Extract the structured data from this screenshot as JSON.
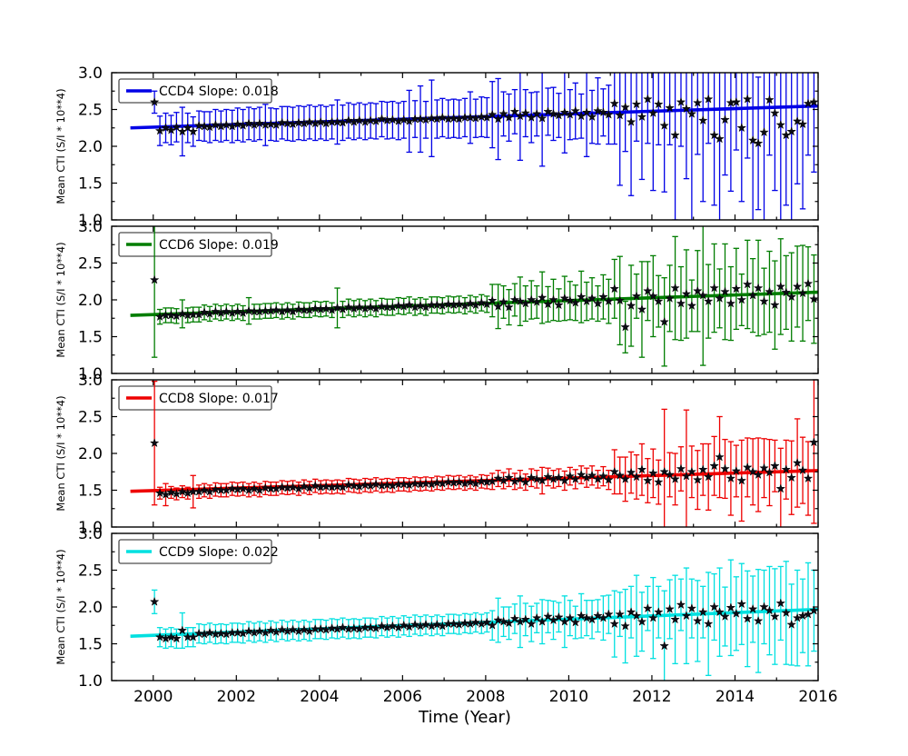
{
  "figure": {
    "background": "#ffffff"
  },
  "chart_data": {
    "type": "scatter",
    "title": "",
    "xlabel": "Time (Year)",
    "ylabel": "Mean CTI (S/I * 10**4)",
    "xlim": [
      1999,
      2016
    ],
    "ylim": [
      1.0,
      3.0
    ],
    "xticks": [
      2000,
      2002,
      2004,
      2006,
      2008,
      2010,
      2012,
      2014,
      2016
    ],
    "xticks_minor": [
      2001,
      2003,
      2005,
      2007,
      2009,
      2011,
      2013,
      2015
    ],
    "yticks": [
      1.0,
      1.5,
      2.0,
      2.5,
      3.0
    ],
    "yticks_minor": [
      1.25,
      1.75,
      2.25,
      2.75
    ],
    "grid": false,
    "legend_position": "upper left",
    "marker": "star",
    "marker_color": "#0b0b14",
    "fit_x_range": [
      1999.45,
      2016
    ],
    "x": [
      2000.03,
      2000.16,
      2000.3,
      2000.43,
      2000.56,
      2000.7,
      2000.83,
      2000.96,
      2001.1,
      2001.23,
      2001.36,
      2001.5,
      2001.63,
      2001.76,
      2001.9,
      2002.03,
      2002.16,
      2002.3,
      2002.43,
      2002.56,
      2002.7,
      2002.83,
      2002.96,
      2003.1,
      2003.23,
      2003.36,
      2003.5,
      2003.63,
      2003.76,
      2003.9,
      2004.03,
      2004.16,
      2004.3,
      2004.43,
      2004.56,
      2004.7,
      2004.83,
      2004.96,
      2005.1,
      2005.23,
      2005.36,
      2005.5,
      2005.63,
      2005.76,
      2005.9,
      2006.03,
      2006.16,
      2006.3,
      2006.43,
      2006.56,
      2006.7,
      2006.83,
      2006.96,
      2007.1,
      2007.23,
      2007.36,
      2007.5,
      2007.63,
      2007.76,
      2007.9,
      2008.03,
      2008.16,
      2008.3,
      2008.43,
      2008.56,
      2008.7,
      2008.83,
      2008.96,
      2009.1,
      2009.23,
      2009.36,
      2009.5,
      2009.63,
      2009.76,
      2009.9,
      2010.03,
      2010.16,
      2010.3,
      2010.43,
      2010.56,
      2010.7,
      2010.83,
      2010.96,
      2011.1,
      2011.23,
      2011.36,
      2011.5,
      2011.63,
      2011.76,
      2011.9,
      2012.03,
      2012.16,
      2012.3,
      2012.43,
      2012.56,
      2012.7,
      2012.83,
      2012.96,
      2013.1,
      2013.23,
      2013.36,
      2013.5,
      2013.63,
      2013.76,
      2013.9,
      2014.03,
      2014.16,
      2014.3,
      2014.43,
      2014.56,
      2014.7,
      2014.83,
      2014.96,
      2015.1,
      2015.23,
      2015.36,
      2015.5,
      2015.63,
      2015.76,
      2015.9
    ],
    "panels": [
      {
        "name": "CCD4",
        "legend_label": "CCD4 Slope: 0.018",
        "color": "#0000e6",
        "slope": 0.018,
        "intercept_2000": 2.26,
        "y": [
          2.6,
          2.21,
          2.25,
          2.22,
          2.26,
          2.2,
          2.25,
          2.2,
          2.28,
          2.27,
          2.26,
          2.29,
          2.27,
          2.29,
          2.27,
          2.3,
          2.28,
          2.31,
          2.29,
          2.31,
          2.29,
          2.3,
          2.29,
          2.32,
          2.31,
          2.3,
          2.32,
          2.31,
          2.33,
          2.31,
          2.33,
          2.31,
          2.33,
          2.33,
          2.32,
          2.35,
          2.33,
          2.35,
          2.33,
          2.35,
          2.34,
          2.37,
          2.35,
          2.36,
          2.34,
          2.36,
          2.34,
          2.37,
          2.37,
          2.36,
          2.38,
          2.37,
          2.39,
          2.37,
          2.38,
          2.37,
          2.39,
          2.39,
          2.38,
          2.4,
          2.39,
          2.43,
          2.37,
          2.44,
          2.39,
          2.47,
          2.41,
          2.45,
          2.39,
          2.44,
          2.38,
          2.47,
          2.44,
          2.42,
          2.46,
          2.43,
          2.48,
          2.41,
          2.46,
          2.4,
          2.48,
          2.46,
          2.43,
          2.58,
          2.42,
          2.53,
          2.33,
          2.57,
          2.4,
          2.64,
          2.45,
          2.57,
          2.28,
          2.52,
          2.15,
          2.6,
          2.51,
          2.44,
          2.59,
          2.35,
          2.64,
          2.15,
          2.1,
          2.36,
          2.59,
          2.6,
          2.25,
          2.64,
          2.08,
          2.04,
          2.19,
          2.63,
          2.45,
          2.29,
          2.15,
          2.2,
          2.34,
          2.3,
          2.58,
          2.6
        ],
        "yerr": [
          0.15,
          0.2,
          0.2,
          0.2,
          0.2,
          0.33,
          0.2,
          0.2,
          0.2,
          0.2,
          0.21,
          0.21,
          0.21,
          0.21,
          0.22,
          0.22,
          0.22,
          0.22,
          0.22,
          0.22,
          0.28,
          0.22,
          0.22,
          0.22,
          0.23,
          0.23,
          0.23,
          0.23,
          0.23,
          0.23,
          0.23,
          0.23,
          0.23,
          0.3,
          0.24,
          0.24,
          0.24,
          0.24,
          0.24,
          0.24,
          0.24,
          0.24,
          0.25,
          0.25,
          0.25,
          0.25,
          0.42,
          0.25,
          0.45,
          0.25,
          0.52,
          0.26,
          0.26,
          0.26,
          0.26,
          0.26,
          0.26,
          0.35,
          0.26,
          0.27,
          0.27,
          0.45,
          0.55,
          0.3,
          0.32,
          0.3,
          0.6,
          0.32,
          0.34,
          0.3,
          0.65,
          0.32,
          0.36,
          0.3,
          0.55,
          0.34,
          0.38,
          0.3,
          0.6,
          0.36,
          0.45,
          0.32,
          0.4,
          0.55,
          0.95,
          0.6,
          1.0,
          0.5,
          0.85,
          0.6,
          1.05,
          0.55,
          0.9,
          0.5,
          1.15,
          0.6,
          0.95,
          1.45,
          0.7,
          1.1,
          0.6,
          0.95,
          1.3,
          0.75,
          1.2,
          0.65,
          1.0,
          0.8,
          1.35,
          0.9,
          1.2,
          0.75,
          1.05,
          1.35,
          0.95,
          1.25,
          0.85,
          1.15,
          0.7,
          0.95
        ]
      },
      {
        "name": "CCD6",
        "legend_label": "CCD6 Slope: 0.019",
        "color": "#007d00",
        "slope": 0.019,
        "intercept_2000": 1.8,
        "y": [
          2.27,
          1.77,
          1.79,
          1.79,
          1.78,
          1.81,
          1.79,
          1.8,
          1.8,
          1.83,
          1.81,
          1.84,
          1.82,
          1.84,
          1.82,
          1.84,
          1.82,
          1.85,
          1.84,
          1.84,
          1.85,
          1.85,
          1.86,
          1.84,
          1.86,
          1.84,
          1.87,
          1.86,
          1.86,
          1.88,
          1.87,
          1.88,
          1.86,
          1.89,
          1.87,
          1.9,
          1.88,
          1.9,
          1.88,
          1.9,
          1.88,
          1.91,
          1.9,
          1.9,
          1.92,
          1.91,
          1.93,
          1.9,
          1.92,
          1.9,
          1.93,
          1.93,
          1.92,
          1.94,
          1.93,
          1.94,
          1.92,
          1.95,
          1.93,
          1.96,
          1.94,
          1.99,
          1.91,
          1.97,
          1.9,
          2.0,
          1.98,
          1.95,
          2.0,
          1.97,
          2.03,
          1.94,
          2.0,
          1.93,
          2.02,
          1.99,
          1.96,
          2.04,
          1.98,
          2.02,
          1.95,
          2.04,
          1.98,
          2.15,
          1.99,
          1.63,
          1.92,
          2.05,
          1.87,
          2.12,
          2.05,
          1.98,
          1.7,
          2.02,
          2.16,
          1.95,
          2.08,
          1.92,
          2.12,
          2.06,
          1.98,
          2.16,
          2.02,
          2.11,
          1.95,
          2.15,
          2.0,
          2.21,
          2.06,
          2.16,
          1.98,
          2.11,
          1.93,
          2.18,
          2.1,
          2.04,
          2.18,
          2.09,
          2.22,
          2.01
        ],
        "yerr": [
          1.05,
          0.1,
          0.1,
          0.1,
          0.1,
          0.19,
          0.1,
          0.1,
          0.1,
          0.1,
          0.1,
          0.1,
          0.1,
          0.1,
          0.1,
          0.1,
          0.1,
          0.18,
          0.1,
          0.1,
          0.1,
          0.1,
          0.1,
          0.1,
          0.1,
          0.1,
          0.1,
          0.1,
          0.1,
          0.1,
          0.1,
          0.1,
          0.1,
          0.27,
          0.11,
          0.11,
          0.11,
          0.11,
          0.11,
          0.11,
          0.11,
          0.11,
          0.11,
          0.11,
          0.11,
          0.11,
          0.11,
          0.11,
          0.11,
          0.11,
          0.11,
          0.11,
          0.11,
          0.11,
          0.11,
          0.11,
          0.11,
          0.11,
          0.11,
          0.11,
          0.11,
          0.22,
          0.3,
          0.22,
          0.24,
          0.22,
          0.33,
          0.24,
          0.26,
          0.22,
          0.35,
          0.24,
          0.28,
          0.22,
          0.3,
          0.26,
          0.24,
          0.35,
          0.26,
          0.28,
          0.24,
          0.3,
          0.3,
          0.4,
          0.6,
          0.35,
          0.55,
          0.3,
          0.65,
          0.4,
          0.55,
          0.35,
          0.6,
          0.45,
          0.7,
          0.5,
          0.6,
          0.35,
          0.55,
          0.95,
          0.5,
          0.6,
          0.4,
          0.65,
          0.5,
          0.55,
          0.35,
          0.6,
          0.5,
          0.65,
          0.45,
          0.55,
          0.6,
          0.65,
          0.5,
          0.6,
          0.55,
          0.65,
          0.5,
          0.6
        ]
      },
      {
        "name": "CCD8",
        "legend_label": "CCD8 Slope: 0.017",
        "color": "#ee0000",
        "slope": 0.017,
        "intercept_2000": 1.495,
        "y": [
          2.14,
          1.46,
          1.44,
          1.47,
          1.45,
          1.48,
          1.46,
          1.48,
          1.48,
          1.5,
          1.48,
          1.51,
          1.5,
          1.5,
          1.52,
          1.51,
          1.52,
          1.5,
          1.52,
          1.5,
          1.53,
          1.52,
          1.52,
          1.54,
          1.53,
          1.54,
          1.52,
          1.55,
          1.53,
          1.56,
          1.54,
          1.55,
          1.54,
          1.55,
          1.54,
          1.57,
          1.56,
          1.55,
          1.57,
          1.56,
          1.58,
          1.56,
          1.57,
          1.56,
          1.58,
          1.58,
          1.57,
          1.59,
          1.58,
          1.59,
          1.58,
          1.6,
          1.59,
          1.61,
          1.6,
          1.61,
          1.59,
          1.61,
          1.59,
          1.62,
          1.61,
          1.62,
          1.66,
          1.63,
          1.67,
          1.62,
          1.65,
          1.61,
          1.67,
          1.65,
          1.63,
          1.68,
          1.65,
          1.67,
          1.63,
          1.69,
          1.65,
          1.71,
          1.67,
          1.7,
          1.65,
          1.69,
          1.64,
          1.75,
          1.7,
          1.65,
          1.74,
          1.68,
          1.78,
          1.63,
          1.73,
          1.61,
          1.75,
          1.71,
          1.65,
          1.79,
          1.69,
          1.75,
          1.64,
          1.78,
          1.68,
          1.83,
          1.95,
          1.79,
          1.66,
          1.76,
          1.63,
          1.81,
          1.75,
          1.71,
          1.8,
          1.74,
          1.83,
          1.52,
          1.78,
          1.67,
          1.87,
          1.77,
          1.66,
          2.15
        ],
        "yerr": [
          0.84,
          0.08,
          0.15,
          0.08,
          0.08,
          0.08,
          0.08,
          0.22,
          0.09,
          0.09,
          0.09,
          0.09,
          0.09,
          0.09,
          0.09,
          0.09,
          0.09,
          0.09,
          0.09,
          0.09,
          0.09,
          0.09,
          0.09,
          0.09,
          0.09,
          0.09,
          0.09,
          0.09,
          0.09,
          0.09,
          0.09,
          0.09,
          0.09,
          0.09,
          0.09,
          0.09,
          0.09,
          0.09,
          0.09,
          0.09,
          0.09,
          0.09,
          0.09,
          0.09,
          0.09,
          0.09,
          0.09,
          0.09,
          0.09,
          0.09,
          0.09,
          0.09,
          0.09,
          0.09,
          0.09,
          0.09,
          0.09,
          0.09,
          0.09,
          0.09,
          0.09,
          0.11,
          0.11,
          0.11,
          0.12,
          0.11,
          0.12,
          0.11,
          0.12,
          0.12,
          0.18,
          0.12,
          0.12,
          0.12,
          0.13,
          0.12,
          0.13,
          0.12,
          0.13,
          0.13,
          0.12,
          0.13,
          0.13,
          0.3,
          0.25,
          0.3,
          0.28,
          0.3,
          0.35,
          0.3,
          0.33,
          0.3,
          0.85,
          0.3,
          0.35,
          0.3,
          0.9,
          0.35,
          0.4,
          0.35,
          0.45,
          0.4,
          0.55,
          0.4,
          0.5,
          0.35,
          0.55,
          0.4,
          0.45,
          0.5,
          0.4,
          0.45,
          0.35,
          0.55,
          0.4,
          0.5,
          0.6,
          0.45,
          0.5,
          1.1
        ]
      },
      {
        "name": "CCD9",
        "legend_label": "CCD9 Slope: 0.022",
        "color": "#00e0e0",
        "slope": 0.022,
        "intercept_2000": 1.615,
        "y": [
          2.07,
          1.59,
          1.57,
          1.59,
          1.57,
          1.68,
          1.59,
          1.59,
          1.64,
          1.63,
          1.65,
          1.63,
          1.64,
          1.63,
          1.65,
          1.65,
          1.64,
          1.67,
          1.65,
          1.67,
          1.65,
          1.68,
          1.66,
          1.69,
          1.67,
          1.69,
          1.67,
          1.69,
          1.67,
          1.7,
          1.7,
          1.69,
          1.71,
          1.7,
          1.72,
          1.7,
          1.71,
          1.7,
          1.72,
          1.72,
          1.71,
          1.74,
          1.72,
          1.74,
          1.72,
          1.75,
          1.73,
          1.76,
          1.74,
          1.76,
          1.74,
          1.76,
          1.74,
          1.77,
          1.77,
          1.76,
          1.78,
          1.77,
          1.79,
          1.77,
          1.79,
          1.75,
          1.82,
          1.8,
          1.78,
          1.84,
          1.8,
          1.83,
          1.77,
          1.85,
          1.8,
          1.87,
          1.82,
          1.86,
          1.8,
          1.85,
          1.79,
          1.88,
          1.85,
          1.83,
          1.88,
          1.85,
          1.9,
          1.77,
          1.9,
          1.74,
          1.93,
          1.88,
          1.8,
          1.98,
          1.85,
          1.93,
          1.47,
          1.97,
          1.83,
          2.03,
          1.88,
          1.98,
          1.81,
          1.93,
          1.77,
          2.0,
          1.93,
          1.87,
          1.99,
          1.91,
          2.04,
          1.84,
          1.97,
          1.81,
          2.0,
          1.95,
          1.87,
          2.05,
          1.92,
          1.76,
          1.85,
          1.88,
          1.9,
          1.95
        ],
        "yerr": [
          0.16,
          0.13,
          0.13,
          0.13,
          0.13,
          0.24,
          0.13,
          0.13,
          0.13,
          0.13,
          0.13,
          0.13,
          0.13,
          0.13,
          0.13,
          0.13,
          0.13,
          0.13,
          0.13,
          0.13,
          0.13,
          0.13,
          0.13,
          0.13,
          0.13,
          0.13,
          0.13,
          0.13,
          0.13,
          0.13,
          0.13,
          0.13,
          0.13,
          0.13,
          0.13,
          0.13,
          0.13,
          0.13,
          0.13,
          0.13,
          0.13,
          0.13,
          0.13,
          0.13,
          0.13,
          0.13,
          0.13,
          0.13,
          0.13,
          0.13,
          0.13,
          0.13,
          0.13,
          0.13,
          0.13,
          0.13,
          0.13,
          0.13,
          0.13,
          0.13,
          0.13,
          0.2,
          0.3,
          0.2,
          0.22,
          0.2,
          0.35,
          0.22,
          0.24,
          0.2,
          0.3,
          0.22,
          0.26,
          0.2,
          0.35,
          0.24,
          0.22,
          0.3,
          0.24,
          0.26,
          0.22,
          0.3,
          0.26,
          0.45,
          0.3,
          0.5,
          0.35,
          0.55,
          0.4,
          0.3,
          0.55,
          0.35,
          0.75,
          0.4,
          0.6,
          0.35,
          0.65,
          0.4,
          0.55,
          0.35,
          0.7,
          0.45,
          0.6,
          0.4,
          0.65,
          0.5,
          0.55,
          0.65,
          0.45,
          0.7,
          0.5,
          0.6,
          0.65,
          0.5,
          0.7,
          0.55,
          0.65,
          0.5,
          0.7,
          0.55
        ]
      }
    ]
  }
}
